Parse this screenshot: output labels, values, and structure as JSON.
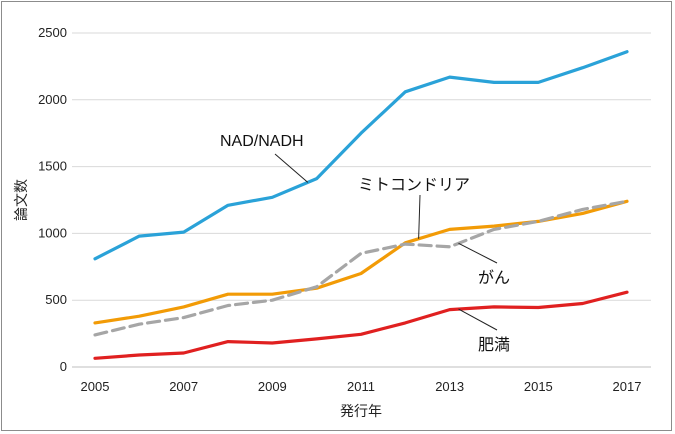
{
  "chart_data": {
    "type": "line",
    "title": "",
    "xlabel": "発行年",
    "ylabel": "論文数",
    "ylim": [
      0,
      2500
    ],
    "yticks": [
      0,
      500,
      1000,
      1500,
      2000,
      2500
    ],
    "xlim": [
      2005,
      2017
    ],
    "xticks": [
      2005,
      2007,
      2009,
      2011,
      2013,
      2015,
      2017
    ],
    "grid": true,
    "legend": "none",
    "x": [
      2005,
      2006,
      2007,
      2008,
      2009,
      2010,
      2011,
      2012,
      2013,
      2014,
      2015,
      2016,
      2017
    ],
    "series": [
      {
        "name": "NAD/NADH",
        "color": "#2aa2d8",
        "dash": false,
        "values": [
          810,
          980,
          1010,
          1210,
          1270,
          1410,
          1750,
          2060,
          2170,
          2130,
          2130,
          2240,
          2360
        ]
      },
      {
        "name": "ミトコンドリア",
        "color": "#f29b06",
        "dash": false,
        "values": [
          330,
          380,
          450,
          545,
          545,
          590,
          700,
          930,
          1030,
          1055,
          1090,
          1150,
          1240
        ]
      },
      {
        "name": "がん",
        "color": "#a6a6a6",
        "dash": true,
        "values": [
          240,
          320,
          370,
          460,
          500,
          600,
          850,
          920,
          900,
          1030,
          1090,
          1180,
          1240
        ]
      },
      {
        "name": "肥満",
        "color": "#e02020",
        "dash": false,
        "values": [
          65,
          90,
          105,
          190,
          180,
          210,
          245,
          330,
          430,
          450,
          445,
          475,
          560
        ]
      }
    ],
    "annotations": [
      {
        "text": "NAD/NADH",
        "series": 0,
        "x": 2009.8
      },
      {
        "text": "ミトコンドリア",
        "series": 1,
        "x": 2012.3
      },
      {
        "text": "がん",
        "series": 2,
        "x": 2013.2
      },
      {
        "text": "肥満",
        "series": 3,
        "x": 2013.2
      }
    ]
  }
}
